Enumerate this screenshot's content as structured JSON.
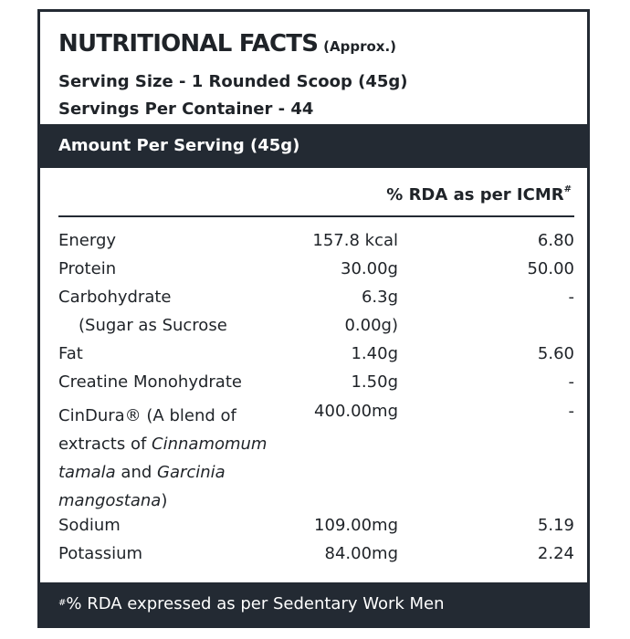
{
  "title": "NUTRITIONAL FACTS",
  "title_note": "(Approx.)",
  "serving_size": "Serving Size - 1 Rounded Scoop (45g)",
  "servings_per_container": "Servings Per Container - 44",
  "amount_header": "Amount Per Serving (45g)",
  "rda_header": "% RDA as per ICMR",
  "hash_mark": "#",
  "rows": [
    {
      "name": "Energy",
      "amount": "157.8 kcal",
      "rda": "6.80"
    },
    {
      "name": "Protein",
      "amount": "30.00g",
      "rda": "50.00"
    },
    {
      "name": "Carbohydrate",
      "amount": "6.3g",
      "rda": "-"
    },
    {
      "name": "(Sugar as Sucrose",
      "amount": "0.00g)",
      "rda": ""
    },
    {
      "name": "Fat",
      "amount": "1.40g",
      "rda": "5.60"
    },
    {
      "name": "Creatine Monohydrate",
      "amount": "1.50g",
      "rda": "-"
    },
    {
      "name": "Sodium",
      "amount": "109.00mg",
      "rda": "5.19"
    },
    {
      "name": "Potassium",
      "amount": "84.00mg",
      "rda": "2.24"
    }
  ],
  "cindura": {
    "part1": "CinDura® (A blend of extracts of ",
    "italic1": "Cinnamomum tamala",
    "part2": " and ",
    "italic2": "Garcinia mangostana",
    "part3": ")",
    "amount": "400.00mg",
    "rda": "-"
  },
  "footer": "% RDA expressed as per Sedentary Work Men",
  "colors": {
    "dark": "#232a33",
    "text": "#1f2328"
  }
}
